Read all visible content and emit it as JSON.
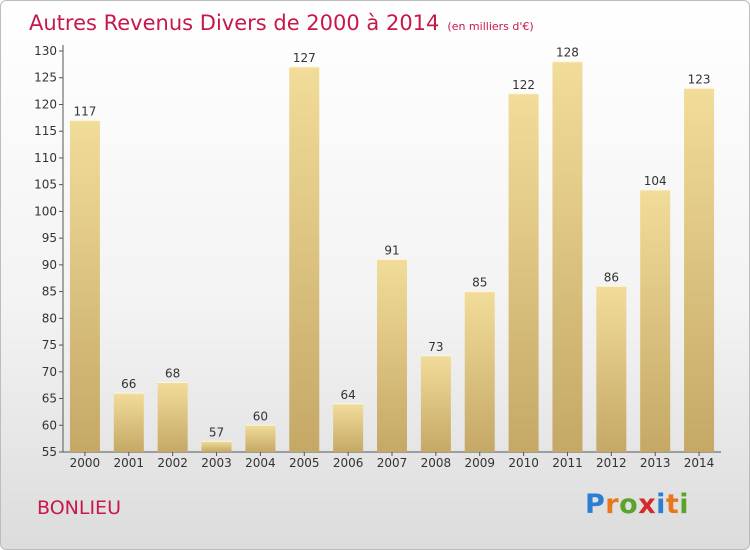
{
  "title": "Autres Revenus Divers de 2000 à 2014",
  "unit_note": "(en milliers d'€)",
  "commune": "BONLIEU",
  "logo": {
    "letters": [
      "P",
      "r",
      "o",
      "x",
      "i",
      "t",
      "i"
    ],
    "colors": [
      "#2a7fd4",
      "#e8761c",
      "#5aa42b",
      "#d42a2a",
      "#2a7fd4",
      "#e8761c",
      "#5aa42b"
    ]
  },
  "colors": {
    "title": "#c8184a",
    "bar_light": "#f2dc9a",
    "bar_dark": "#c5a865",
    "axis": "#555555"
  },
  "chart_data": {
    "type": "bar",
    "categories": [
      "2000",
      "2001",
      "2002",
      "2003",
      "2004",
      "2005",
      "2006",
      "2007",
      "2008",
      "2009",
      "2010",
      "2011",
      "2012",
      "2013",
      "2014"
    ],
    "values": [
      117,
      66,
      68,
      57,
      60,
      127,
      64,
      91,
      73,
      85,
      122,
      128,
      86,
      104,
      123
    ],
    "ylim": [
      55,
      130
    ],
    "yticks": [
      55,
      60,
      65,
      70,
      75,
      80,
      85,
      90,
      95,
      100,
      105,
      110,
      115,
      120,
      125,
      130
    ],
    "grid": false,
    "data_labels": true
  }
}
